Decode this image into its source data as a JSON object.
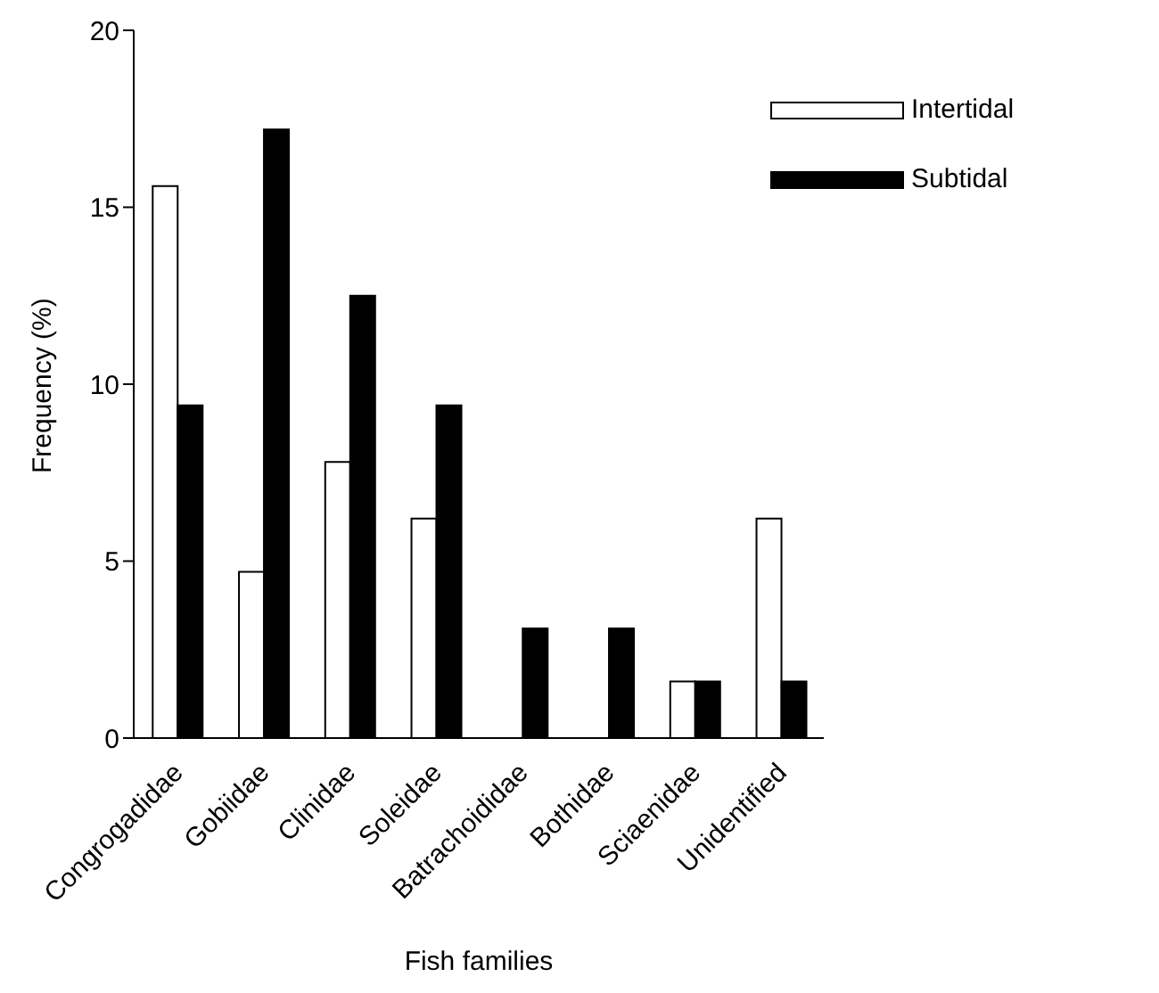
{
  "chart_data": {
    "type": "bar",
    "xlabel": "Fish families",
    "ylabel": "Frequency (%)",
    "categories": [
      "Congrogadidae",
      "Gobiidae",
      "Clinidae",
      "Soleidae",
      "Batrachoididae",
      "Bothidae",
      "Sciaenidae",
      "Unidentified"
    ],
    "series": [
      {
        "name": "Intertidal",
        "color": "#ffffff",
        "values": [
          15.6,
          4.7,
          7.8,
          6.2,
          0,
          0,
          1.6,
          6.2
        ]
      },
      {
        "name": "Subtidal",
        "color": "#000000",
        "values": [
          9.4,
          17.2,
          12.5,
          9.4,
          3.1,
          3.1,
          1.6,
          1.6
        ]
      }
    ],
    "ylim": [
      0,
      20
    ],
    "yticks": [
      0,
      5,
      10,
      15,
      20
    ],
    "grid": false,
    "legend": "top right"
  }
}
